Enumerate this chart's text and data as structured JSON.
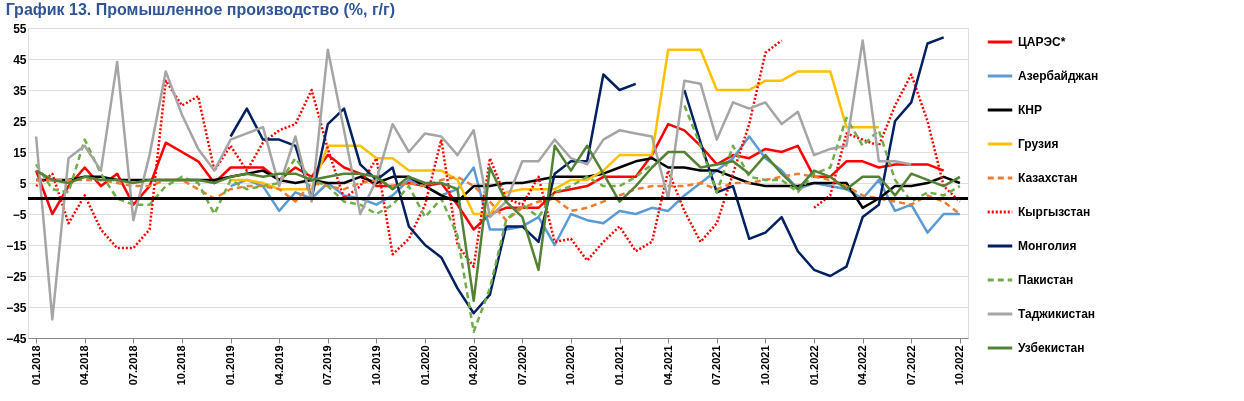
{
  "chart_data": {
    "type": "line",
    "title": "График 13. Промышленное производство (%, г/г)",
    "categories": [
      "01.2018",
      null,
      null,
      "04.2018",
      null,
      null,
      "07.2018",
      null,
      null,
      "10.2018",
      null,
      null,
      "01.2019",
      null,
      null,
      "04.2019",
      null,
      null,
      "07.2019",
      null,
      null,
      "10.2019",
      null,
      null,
      "01.2020",
      null,
      null,
      "04.2020",
      null,
      null,
      "07.2020",
      null,
      null,
      "10.2020",
      null,
      null,
      "01.2021",
      null,
      null,
      "04.2021",
      null,
      null,
      "07.2021",
      null,
      null,
      "10.2021",
      null,
      null,
      "01.2022",
      null,
      null,
      "04.2022",
      null,
      null,
      "07.2022",
      null,
      null,
      "10.2022"
    ],
    "series": [
      {
        "name": "ЦАРЭС*",
        "color": "#ff0000",
        "values": [
          9,
          -5,
          4,
          10,
          4,
          8,
          -2,
          4,
          18,
          15,
          12,
          5,
          10,
          10,
          10,
          6,
          10,
          7,
          14,
          10,
          8,
          4,
          4,
          5,
          4,
          5,
          -2,
          -10,
          -5,
          -3,
          -3,
          -3,
          2,
          3,
          4,
          7,
          7,
          7,
          14,
          24,
          22,
          17,
          11,
          14,
          13,
          16,
          15,
          17,
          7,
          7,
          12,
          12,
          10,
          11,
          11,
          11,
          9,
          null
        ]
      },
      {
        "name": "Азербайджан",
        "color": "#5b9bd5",
        "values": [
          null,
          null,
          null,
          null,
          null,
          null,
          null,
          null,
          null,
          null,
          null,
          null,
          4,
          6,
          4,
          -4,
          2,
          0,
          5,
          1,
          0,
          -2,
          1,
          6,
          4,
          1,
          3,
          10,
          -10,
          -10,
          -9,
          -6,
          -15,
          -5,
          -7,
          -8,
          -4,
          -5,
          -3,
          -4,
          1,
          5,
          9,
          13,
          20,
          13,
          9,
          3,
          5,
          4,
          3,
          0,
          6,
          -4,
          -2,
          -11,
          -5,
          -5
        ]
      },
      {
        "name": "КНР",
        "color": "#000000",
        "values": [
          6,
          6,
          6,
          7,
          7,
          6,
          6,
          6,
          6,
          6,
          6,
          6,
          7,
          8,
          9,
          6,
          5,
          6,
          5,
          5,
          7,
          5,
          7,
          7,
          4,
          1,
          -1,
          4,
          4,
          5,
          5,
          6,
          7,
          7,
          7,
          8,
          10,
          12,
          13,
          10,
          10,
          9,
          9,
          7,
          5,
          4,
          4,
          4,
          5,
          5,
          5,
          -3,
          0,
          4,
          4,
          5,
          7,
          5
        ]
      },
      {
        "name": "Грузия",
        "color": "#ffc000",
        "values": [
          null,
          null,
          null,
          null,
          null,
          null,
          null,
          null,
          null,
          null,
          null,
          null,
          6,
          6,
          5,
          3,
          3,
          3,
          17,
          17,
          17,
          13,
          13,
          9,
          9,
          9,
          6,
          -5,
          -5,
          2,
          3,
          3,
          3,
          6,
          6,
          9,
          14,
          14,
          14,
          48,
          48,
          48,
          35,
          35,
          35,
          38,
          38,
          41,
          41,
          41,
          23,
          23,
          23,
          null,
          null,
          null,
          null,
          null
        ]
      },
      {
        "name": "Казахстан",
        "color": "#ed7d31",
        "line_style": "dashed",
        "values": [
          6,
          6,
          6,
          6,
          6,
          5,
          4,
          4,
          6,
          6,
          3,
          0,
          3,
          4,
          4,
          3,
          -1,
          5,
          4,
          3,
          5,
          6,
          4,
          5,
          4,
          6,
          7,
          4,
          -1,
          -7,
          -3,
          -1,
          0,
          -4,
          -3,
          -1,
          1,
          3,
          4,
          4,
          4,
          5,
          3,
          5,
          5,
          6,
          7,
          8,
          7,
          6,
          4,
          1,
          0,
          -1,
          -2,
          1,
          -1,
          -5
        ]
      },
      {
        "name": "Кыргызстан",
        "color": "#ff0000",
        "line_style": "dotted",
        "values": [
          4,
          8,
          -8,
          1,
          -10,
          -16,
          -16,
          -10,
          38,
          30,
          33,
          9,
          17,
          9,
          18,
          22,
          24,
          35,
          16,
          0,
          4,
          13,
          -18,
          -13,
          -2,
          19,
          -15,
          -22,
          13,
          0,
          -2,
          7,
          -14,
          -13,
          -20,
          -14,
          -9,
          -17,
          -14,
          9,
          -4,
          -14,
          -8,
          8,
          24,
          47,
          51,
          null,
          -3,
          1,
          21,
          19,
          17,
          30,
          40,
          25,
          4,
          -1
        ]
      },
      {
        "name": "Монголия",
        "color": "#002060",
        "values": [
          null,
          null,
          null,
          null,
          null,
          null,
          null,
          null,
          null,
          null,
          null,
          null,
          20,
          29,
          19,
          19,
          17,
          0,
          24,
          29,
          11,
          6,
          10,
          -9,
          -15,
          -19,
          -29,
          -37,
          -31,
          -9,
          -9,
          -14,
          8,
          12,
          12,
          40,
          35,
          37,
          null,
          null,
          35,
          18,
          2,
          4,
          -13,
          -11,
          -6,
          -17,
          -23,
          -25,
          -22,
          -6,
          -2,
          25,
          31,
          50,
          52,
          null
        ]
      },
      {
        "name": "Пакистан",
        "color": "#70ad47",
        "line_style": "dashed",
        "values": [
          11,
          3,
          2,
          19,
          8,
          0,
          -2,
          -2,
          4,
          7,
          5,
          -5,
          6,
          3,
          4,
          5,
          13,
          6,
          4,
          -1,
          -2,
          -5,
          -2,
          4,
          -6,
          0,
          -12,
          -43,
          -29,
          -7,
          -2,
          -6,
          2,
          4,
          7,
          4,
          4,
          7,
          11,
          null,
          30,
          17,
          2,
          17,
          7,
          6,
          6,
          2,
          8,
          10,
          26,
          17,
          22,
          6,
          -1,
          2,
          1,
          4
        ]
      },
      {
        "name": "Таджикистан",
        "color": "#a5a5a5",
        "values": [
          20,
          -39,
          13,
          17,
          9,
          44,
          -7,
          14,
          41,
          27,
          16,
          9,
          19,
          21,
          23,
          4,
          20,
          -1,
          48,
          22,
          -5,
          6,
          24,
          15,
          21,
          20,
          14,
          22,
          -6,
          -1,
          12,
          12,
          19,
          13,
          11,
          19,
          22,
          21,
          20,
          0,
          38,
          37,
          19,
          31,
          29,
          31,
          24,
          28,
          14,
          16,
          17,
          51,
          12,
          12,
          11,
          null,
          null,
          null
        ]
      },
      {
        "name": "Узбекистан",
        "color": "#548235",
        "values": [
          9,
          6,
          5,
          7,
          6,
          6,
          5,
          6,
          6,
          6,
          6,
          5,
          7,
          8,
          7,
          8,
          8,
          6,
          7,
          8,
          8,
          7,
          3,
          7,
          5,
          5,
          3,
          -33,
          10,
          -1,
          -6,
          -23,
          17,
          9,
          17,
          8,
          -1,
          4,
          10,
          15,
          15,
          10,
          11,
          12,
          8,
          14,
          8,
          3,
          9,
          7,
          3,
          7,
          7,
          1,
          8,
          6,
          4,
          7
        ]
      }
    ],
    "ylim": [
      -45,
      55
    ],
    "yticks": [
      -45,
      -35,
      -25,
      -15,
      -5,
      5,
      15,
      25,
      35,
      45,
      55
    ],
    "ref_lines": [
      {
        "axis": "y",
        "value": 0,
        "color": "#000000"
      }
    ],
    "grid": "y",
    "legend": "right"
  }
}
